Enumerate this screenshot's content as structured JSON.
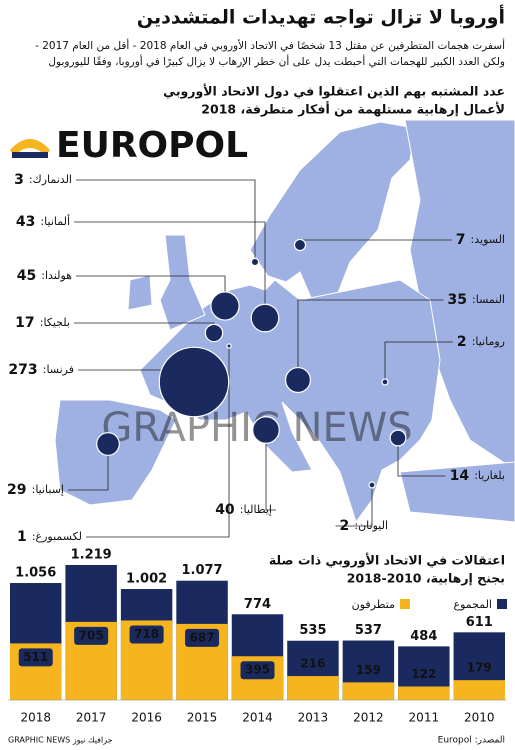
{
  "title": "أوروبا لا تزال تواجه تهديدات المتشددين",
  "subtitle": [
    "أسفرت هجمات المتطرفين عن مقتل 13 شخصًا في الاتحاد الأوروبي في العام 2018 - أقل من العام 2017 -",
    "ولكن العدد الكبير للهجمات التي أحبطت يدل على أن خطر الإرهاب لا يزال كبيرًا في أوروبا، وفقًا لليوروبول"
  ],
  "logo": "EUROPOL",
  "watermark": "GRAPHIC NEWS",
  "chart_data": [
    {
      "type": "bubble",
      "title": [
        "عدد المشتبه بهم الذين اعتقلوا في دول الاتحاد الأوروبي",
        "لأعمال إرهابية مستلهمة من أفكار متطرفة، 2018"
      ],
      "categories": [
        "الدنمارك:",
        "ألمانيا:",
        "هولندا:",
        "بلجيكا:",
        "فرنسا:",
        "إسبانيا:",
        "لكسمبورغ:",
        "إيطاليا:",
        "اليونان:",
        "بلغاريا:",
        "رومانيا:",
        "النمسا:",
        "السويد:"
      ],
      "values": [
        3,
        43,
        45,
        17,
        273,
        29,
        1,
        40,
        2,
        14,
        2,
        35,
        7
      ],
      "color": "#1b2a5e"
    },
    {
      "type": "bar",
      "title": [
        "اعتقالات في الاتحاد الأوروبي ذات صلة",
        "بجنح إرهابية، 2010-2018"
      ],
      "categories": [
        "2018",
        "2017",
        "2016",
        "2015",
        "2014",
        "2013",
        "2012",
        "2011",
        "2010"
      ],
      "series": [
        {
          "name": "المجموع",
          "color": "#1b2a5e",
          "values": [
            1056,
            1219,
            1002,
            1077,
            774,
            535,
            537,
            484,
            611
          ],
          "value_labels": [
            "1.056",
            "1.219",
            "1.002",
            "1.077",
            "774",
            "535",
            "537",
            "484",
            "611"
          ]
        },
        {
          "name": "متطرفون",
          "color": "#f6b51e",
          "values": [
            511,
            705,
            718,
            687,
            395,
            216,
            159,
            122,
            179
          ]
        }
      ],
      "ylim": [
        0,
        1300
      ]
    }
  ],
  "source": "المصدر: Europol",
  "credit": "GRAPHIC NEWS جرافيك نيوز"
}
